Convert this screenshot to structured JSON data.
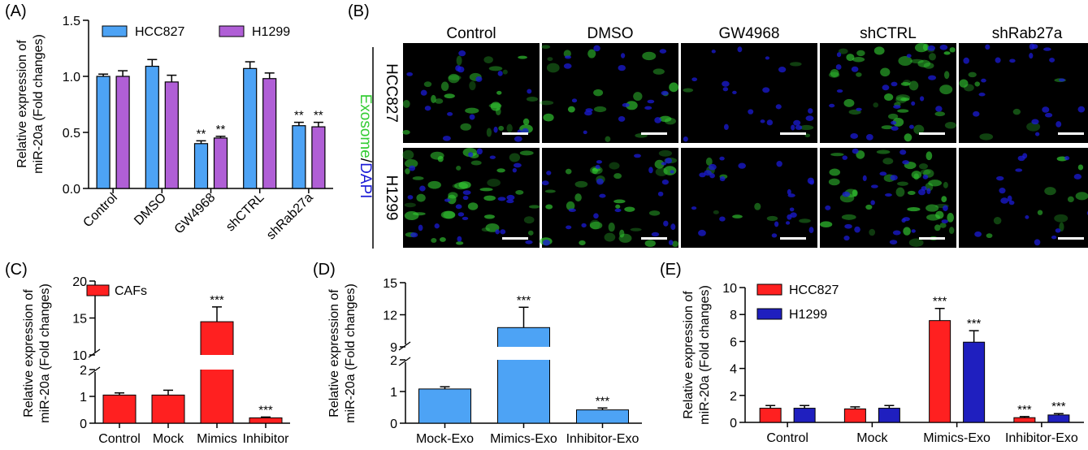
{
  "colors": {
    "blue": "#4da3f5",
    "purple": "#b05fd6",
    "red": "#ff2020",
    "navy": "#1f1fbf",
    "green": "#33cc33",
    "dapi": "#1b1bd6"
  },
  "panel_labels": {
    "a": "(A)",
    "b": "(B)",
    "c": "(C)",
    "d": "(D)",
    "e": "(E)"
  },
  "chart_data": [
    {
      "id": "A",
      "type": "bar",
      "ylabel_line1": "Relative expression of",
      "ylabel_line2": "miR-20a (Fold changes)",
      "ylim": [
        0,
        1.5
      ],
      "yticks": [
        "0.0",
        "0.5",
        "1.0",
        "1.5"
      ],
      "categories": [
        "Control",
        "DMSO",
        "GW4968",
        "shCTRL",
        "shRab27a"
      ],
      "series": [
        {
          "name": "HCC827",
          "color": "blue",
          "values": [
            1.0,
            1.09,
            0.4,
            1.07,
            0.56
          ],
          "errors": [
            0.02,
            0.06,
            0.025,
            0.06,
            0.03
          ],
          "sig": [
            "",
            "",
            "**",
            "",
            "**"
          ]
        },
        {
          "name": "H1299",
          "color": "purple",
          "values": [
            1.0,
            0.95,
            0.45,
            0.98,
            0.55
          ],
          "errors": [
            0.05,
            0.06,
            0.015,
            0.05,
            0.04
          ],
          "sig": [
            "",
            "",
            "**",
            "",
            "**"
          ]
        }
      ]
    },
    {
      "id": "C",
      "type": "bar",
      "broken_axis": true,
      "ylabel_line1": "Relative expression of",
      "ylabel_line2": "miR-20a (Fold changes)",
      "yticks": [
        "0",
        "1",
        "2",
        "10",
        "15",
        "20"
      ],
      "categories": [
        "Control",
        "Mock",
        "Mimics",
        "Inhibitor"
      ],
      "series": [
        {
          "name": "CAFs",
          "color": "red",
          "values": [
            1.05,
            1.05,
            14.5,
            0.2
          ],
          "errors": [
            0.08,
            0.18,
            2.0,
            0.03
          ],
          "sig": [
            "",
            "",
            "***",
            "***"
          ]
        }
      ]
    },
    {
      "id": "D",
      "type": "bar",
      "broken_axis": true,
      "ylabel_line1": "Relative expression of",
      "ylabel_line2": "miR-20a (Fold changes)",
      "yticks": [
        "0",
        "1",
        "2",
        "9",
        "12",
        "15"
      ],
      "categories": [
        "Mock-Exo",
        "Mimics-Exo",
        "Inhibitor-Exo"
      ],
      "series": [
        {
          "name": "",
          "color": "blue",
          "values": [
            1.08,
            10.8,
            0.42
          ],
          "errors": [
            0.07,
            1.9,
            0.06
          ],
          "sig": [
            "",
            "***",
            "***"
          ]
        }
      ]
    },
    {
      "id": "E",
      "type": "bar",
      "ylabel_line1": "Relative expression of",
      "ylabel_line2": "miR-20a (Fold changes)",
      "ylim": [
        0,
        10
      ],
      "yticks": [
        "0",
        "2",
        "4",
        "6",
        "8",
        "10"
      ],
      "categories": [
        "Control",
        "Mock",
        "Mimics-Exo",
        "Inhibitor-Exo"
      ],
      "series": [
        {
          "name": "HCC827",
          "color": "red",
          "values": [
            1.05,
            1.0,
            7.55,
            0.35
          ],
          "errors": [
            0.2,
            0.15,
            0.9,
            0.08
          ],
          "sig": [
            "",
            "",
            "***",
            "***"
          ]
        },
        {
          "name": "H1299",
          "color": "navy",
          "values": [
            1.05,
            1.05,
            5.95,
            0.55
          ],
          "errors": [
            0.2,
            0.2,
            0.85,
            0.1
          ],
          "sig": [
            "",
            "",
            "***",
            "***"
          ]
        }
      ]
    }
  ],
  "micrographs": {
    "columns": [
      "Control",
      "DMSO",
      "GW4968",
      "shCTRL",
      "shRab27a"
    ],
    "rows": [
      "HCC827",
      "H1299"
    ],
    "stain_label_part1": "Exosome",
    "stain_label_sep": "/",
    "stain_label_part2": "DAPI",
    "green_density": [
      [
        0.7,
        0.5,
        0.1,
        1.0,
        0.2
      ],
      [
        1.0,
        0.8,
        0.2,
        1.0,
        0.25
      ]
    ]
  }
}
